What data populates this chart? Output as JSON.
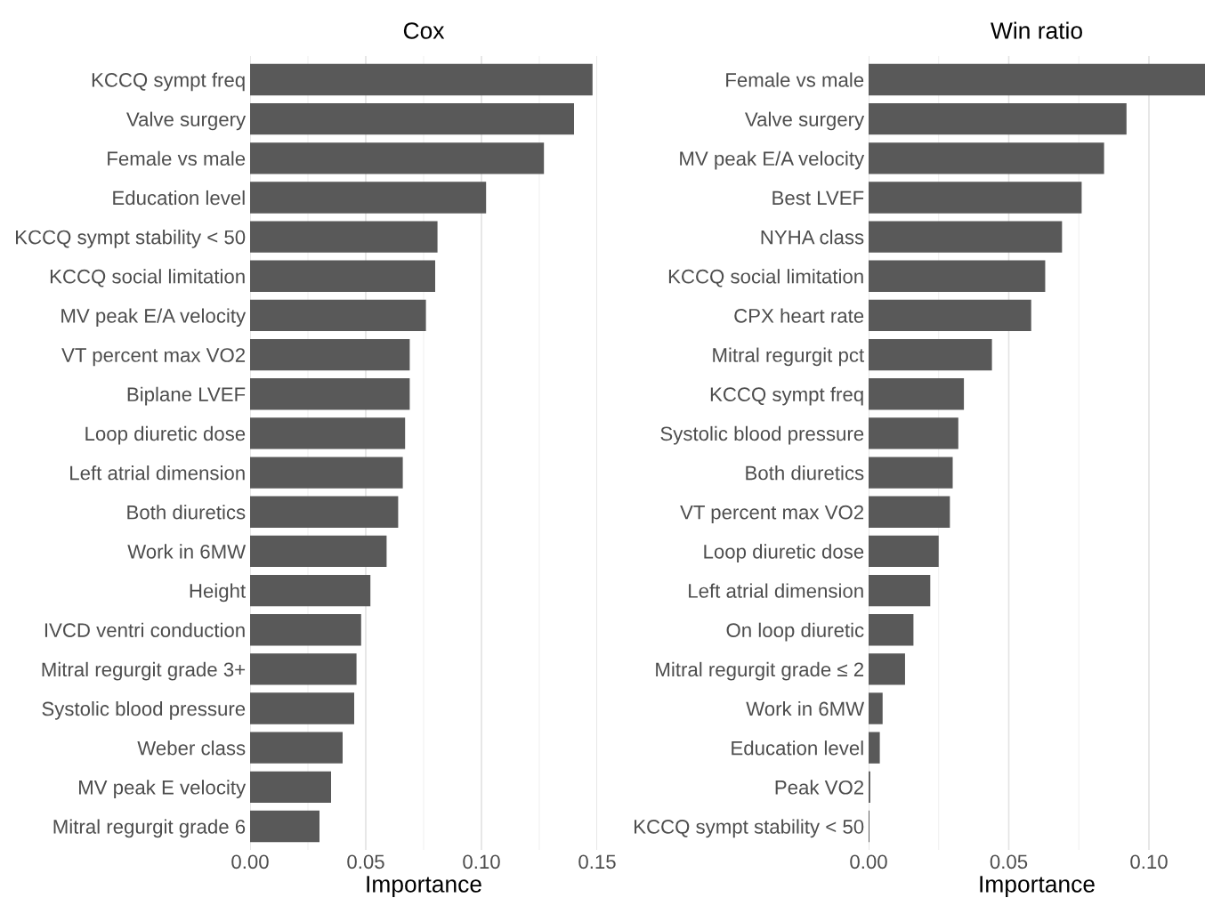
{
  "chart_data": [
    {
      "type": "bar",
      "orientation": "horizontal",
      "title": "Cox",
      "xlabel": "Importance",
      "color": "#595959",
      "grid": "x",
      "legend": false,
      "categories": [
        "KCCQ sympt freq",
        "Valve surgery",
        "Female vs male",
        "Education level",
        "KCCQ sympt stability < 50",
        "KCCQ social limitation",
        "MV peak E/A velocity",
        "VT percent max VO2",
        "Biplane LVEF",
        "Loop diuretic dose",
        "Left atrial dimension",
        "Both diuretics",
        "Work in 6MW",
        "Height",
        "IVCD ventri conduction",
        "Mitral regurgit grade 3+",
        "Systolic blood pressure",
        "Weber class",
        "MV peak E velocity",
        "Mitral regurgit grade 6"
      ],
      "values": [
        0.148,
        0.14,
        0.127,
        0.102,
        0.081,
        0.08,
        0.076,
        0.069,
        0.069,
        0.067,
        0.066,
        0.064,
        0.059,
        0.052,
        0.048,
        0.046,
        0.045,
        0.04,
        0.035,
        0.03
      ],
      "xlim": [
        0,
        0.15
      ],
      "xticks": [
        {
          "value": 0,
          "label": "0.00"
        },
        {
          "value": 0.025,
          "label": null
        },
        {
          "value": 0.05,
          "label": "0.05"
        },
        {
          "value": 0.075,
          "label": null
        },
        {
          "value": 0.1,
          "label": "0.10"
        },
        {
          "value": 0.125,
          "label": null
        },
        {
          "value": 0.15,
          "label": "0.15"
        }
      ]
    },
    {
      "type": "bar",
      "orientation": "horizontal",
      "title": "Win ratio",
      "xlabel": "Importance",
      "color": "#595959",
      "grid": "x",
      "legend": false,
      "categories": [
        "Female vs male",
        "Valve surgery",
        "MV peak E/A velocity",
        "Best LVEF",
        "NYHA class",
        "KCCQ social limitation",
        "CPX heart rate",
        "Mitral regurgit pct",
        "KCCQ sympt freq",
        "Systolic blood pressure",
        "Both diuretics",
        "VT percent max VO2",
        "Loop diuretic dose",
        "Left atrial dimension",
        "On loop diuretic",
        "Mitral regurgit grade ≤ 2",
        "Work in 6MW",
        "Education level",
        "Peak VO2",
        "KCCQ sympt stability < 50"
      ],
      "values": [
        0.12,
        0.092,
        0.084,
        0.076,
        0.069,
        0.063,
        0.058,
        0.044,
        0.034,
        0.032,
        0.03,
        0.029,
        0.025,
        0.022,
        0.016,
        0.013,
        0.005,
        0.004,
        0.0006,
        0.0003
      ],
      "xlim": [
        0,
        0.12
      ],
      "xticks": [
        {
          "value": 0,
          "label": "0.00"
        },
        {
          "value": 0.025,
          "label": null
        },
        {
          "value": 0.05,
          "label": "0.05"
        },
        {
          "value": 0.075,
          "label": null
        },
        {
          "value": 0.1,
          "label": "0.10"
        }
      ]
    }
  ]
}
